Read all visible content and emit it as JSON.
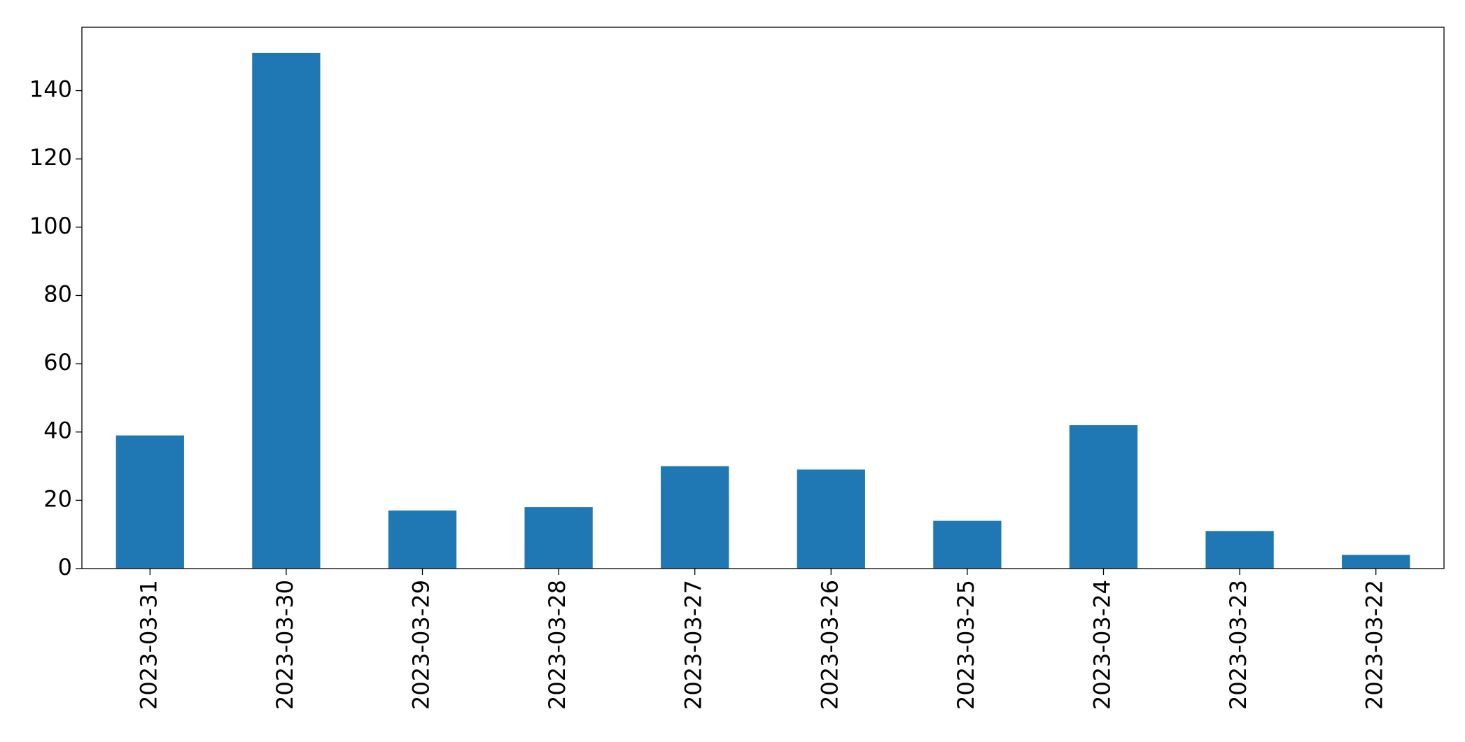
{
  "chart_data": {
    "type": "bar",
    "categories": [
      "2023-03-31",
      "2023-03-30",
      "2023-03-29",
      "2023-03-28",
      "2023-03-27",
      "2023-03-26",
      "2023-03-25",
      "2023-03-24",
      "2023-03-23",
      "2023-03-22"
    ],
    "values": [
      39,
      151,
      17,
      18,
      30,
      29,
      14,
      42,
      11,
      4
    ],
    "color": "#1f77b4",
    "ylim": [
      0,
      158.55
    ],
    "yticks": [
      0,
      20,
      40,
      60,
      80,
      100,
      120,
      140
    ],
    "grid": false
  }
}
